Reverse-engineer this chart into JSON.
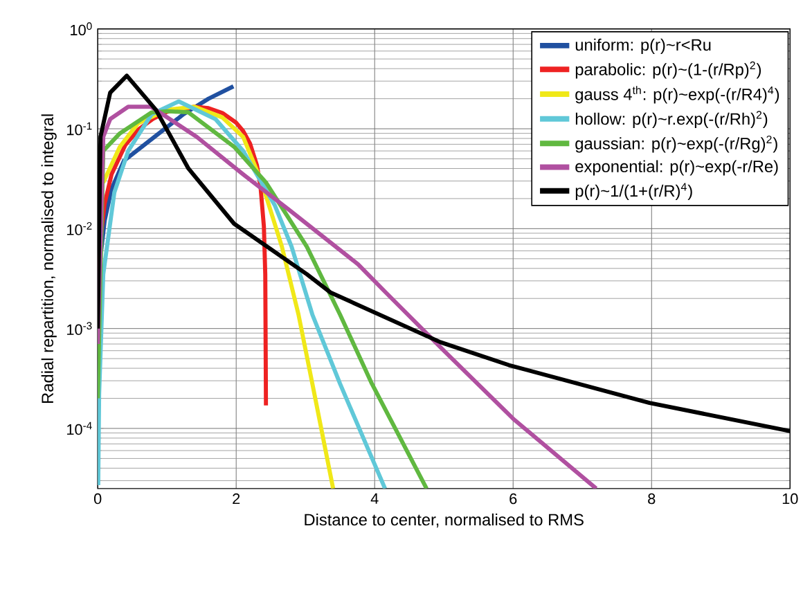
{
  "chart_data": {
    "type": "line",
    "xlabel": "Distance to center, normalised to RMS",
    "ylabel": "Radial repartition, normalised to integral",
    "xlim": [
      0,
      10
    ],
    "ylim": [
      2.5e-05,
      1
    ],
    "log": "y",
    "grid": true,
    "legend": "top right",
    "line_style": "solid",
    "marker": "none",
    "xticks": [
      0,
      2,
      4,
      6,
      8,
      10
    ],
    "yticks": [
      {
        "value": 1,
        "label": "10$^{0}$"
      },
      {
        "value": 0.1,
        "label": "10$^{-1}$"
      },
      {
        "value": 0.01,
        "label": "10$^{-2}$"
      },
      {
        "value": 0.001,
        "label": "10$^{-3}$"
      },
      {
        "value": 0.0001,
        "label": "10$^{-4}$"
      }
    ],
    "series": [
      {
        "name": "uniform: p(r)~r<Ru",
        "color": "#2050a0",
        "x": [
          0.05,
          0.1,
          0.2,
          0.38,
          1.24,
          1.6,
          1.96
        ],
        "values": [
          0.006,
          0.012,
          0.025,
          0.048,
          0.14,
          0.2,
          0.266
        ]
      },
      {
        "name": "parabolic: p(r)~(1-(r/Rp)$^{2}$)",
        "color": "#ee2222",
        "x": [
          0.02,
          0.05,
          0.1,
          0.2,
          0.4,
          0.6,
          0.8,
          1.0,
          1.2,
          1.4,
          1.6,
          1.8,
          2.0,
          2.1,
          2.2,
          2.3,
          2.35,
          2.4,
          2.42,
          2.43
        ],
        "values": [
          0.0036,
          0.0089,
          0.0178,
          0.035,
          0.069,
          0.1,
          0.126,
          0.148,
          null,
          0.166,
          0.161,
          0.144,
          0.115,
          0.095,
          0.071,
          0.043,
          0.027,
          0.0105,
          0.0035,
          0.00017
        ]
      },
      {
        "name": "gauss 4$^{th}$: p(r)~exp(-(r/R4)$^{4}$)",
        "color": "#f0e818",
        "x": [
          0.08,
          0.32,
          0.58,
          1.0,
          1.4,
          1.8,
          2.1,
          2.37,
          2.66,
          2.9,
          3.1,
          3.4
        ],
        "values": [
          0.029,
          0.066,
          0.113,
          0.155,
          0.166,
          0.13,
          0.083,
          0.029,
          0.0066,
          0.00138,
          0.00028,
          2.5e-05
        ]
      },
      {
        "name": "hollow: p(r)~r.exp(-(r/Rh)$^{2}$)",
        "color": "#60c8d8",
        "x": [
          0.007,
          0.02,
          0.08,
          0.24,
          0.44,
          0.78,
          1.17,
          1.7,
          2.1,
          2.56,
          2.8,
          3.1,
          3.5,
          4.15
        ],
        "values": [
          2.7e-05,
          0.00022,
          0.0035,
          0.023,
          0.06,
          0.14,
          0.188,
          0.125,
          0.06,
          0.017,
          0.0066,
          0.00138,
          0.00028,
          2.5e-05
        ]
      },
      {
        "name": "gaussian: p(r)~exp(-(r/Rg)$^{2}$)",
        "color": "#60b840",
        "x": [
          0.0005,
          0.08,
          0.32,
          0.78,
          1.0,
          1.31,
          1.97,
          2.43,
          3.02,
          3.5,
          3.96,
          4.75
        ],
        "values": [
          0.0002,
          0.06,
          0.09,
          0.146,
          0.15,
          0.146,
          0.066,
          0.029,
          0.0066,
          0.00138,
          0.00028,
          2.5e-05
        ]
      },
      {
        "name": "exponential: p(r)~exp(-r/Re)",
        "color": "#b050a0",
        "x": [
          0.0005,
          0.08,
          0.18,
          0.44,
          0.77,
          1.43,
          2.1,
          2.76,
          3.76,
          4.16,
          5.0,
          6.0,
          7.2
        ],
        "values": [
          0.0007,
          0.083,
          0.125,
          0.166,
          0.166,
          0.083,
          0.035,
          0.0155,
          0.0044,
          0.0023,
          0.0006,
          0.000125,
          2.5e-05
        ]
      },
      {
        "name": "p(r)~1/(1+(r/R)$^{4}$)",
        "color": "#000000",
        "x": [
          0.0005,
          0.04,
          0.18,
          0.42,
          0.84,
          1.31,
          1.97,
          3.02,
          3.36,
          4.95,
          5.94,
          7.97,
          10
        ],
        "values": [
          0.001,
          0.083,
          0.23,
          0.34,
          0.155,
          0.04,
          0.0112,
          0.0035,
          0.0023,
          0.00073,
          0.00043,
          0.00018,
          9.4e-05
        ]
      }
    ]
  }
}
